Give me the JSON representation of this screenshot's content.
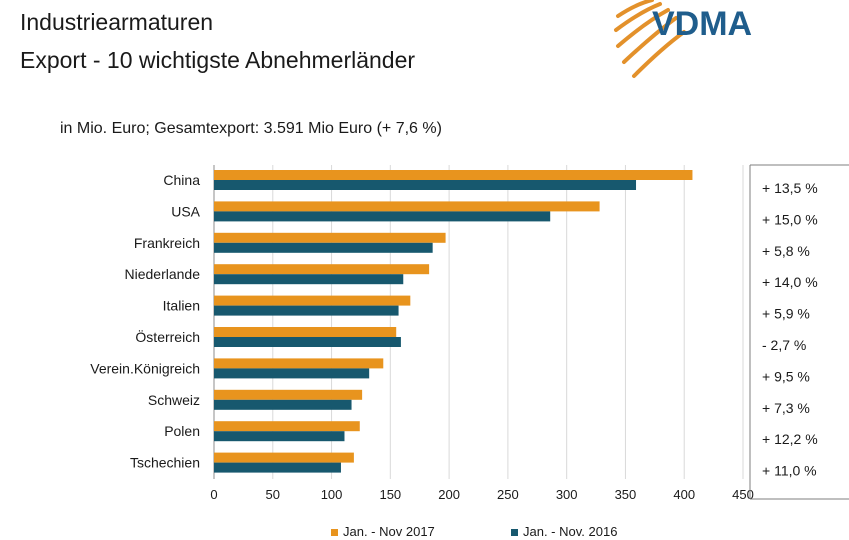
{
  "header": {
    "title_line1": "Industriearmaturen",
    "title_line2": "Export - 10 wichtigste Abnehmerländer",
    "subtitle": "in Mio. Euro; Gesamtexport: 3.591 Mio Euro (+ 7,6 %)"
  },
  "logo": {
    "text": "VDMA",
    "text_color": "#1f5d8c",
    "arc_color": "#e3912b"
  },
  "chart_data": {
    "type": "bar",
    "orientation": "horizontal",
    "categories": [
      "China",
      "USA",
      "Frankreich",
      "Niederlande",
      "Italien",
      "Österreich",
      "Verein.Königreich",
      "Schweiz",
      "Polen",
      "Tschechien"
    ],
    "series": [
      {
        "name": "Jan. - Nov 2017",
        "color": "#e8941e",
        "values": [
          407,
          328,
          197,
          183,
          167,
          155,
          144,
          126,
          124,
          119
        ]
      },
      {
        "name": "Jan. - Nov. 2016",
        "color": "#17586e",
        "values": [
          359,
          286,
          186,
          161,
          157,
          159,
          132,
          117,
          111,
          108
        ]
      }
    ],
    "changes": [
      "+ 13,5 %",
      "+ 15,0 %",
      "+    5,8 %",
      "+ 14,0 %",
      "+    5,9 %",
      "-    2,7 %",
      "+    9,5 %",
      "+    7,3 %",
      "+ 12,2 %",
      "+ 11,0 %"
    ],
    "xlim": [
      0,
      450
    ],
    "xticks": [
      0,
      50,
      100,
      150,
      200,
      250,
      300,
      350,
      400,
      450
    ],
    "grid": true,
    "legend_position": "bottom"
  }
}
